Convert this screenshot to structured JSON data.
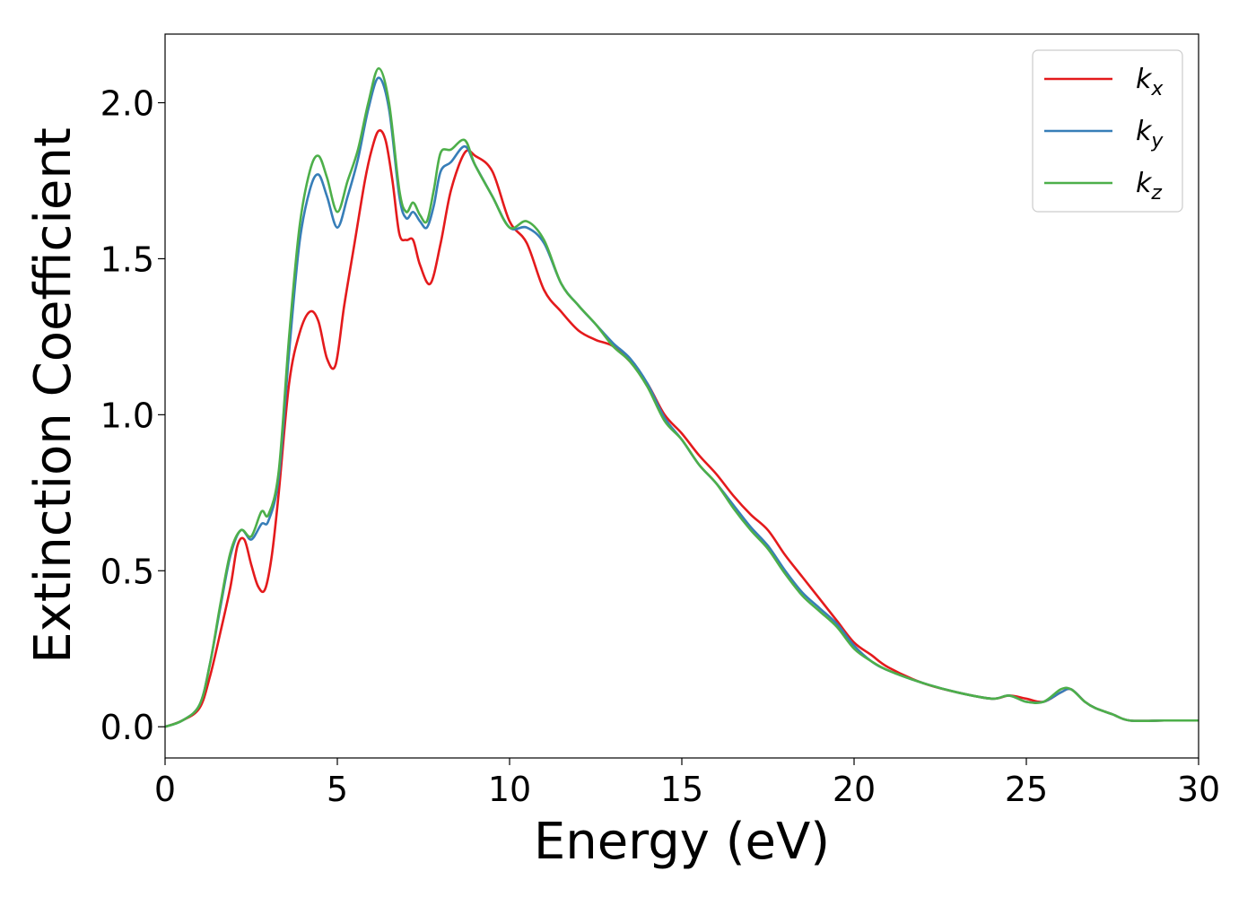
{
  "chart_data": {
    "type": "line",
    "title": "",
    "xlabel": "Energy (eV)",
    "ylabel": "Extinction Coefficient",
    "xlim": [
      0,
      30
    ],
    "ylim": [
      -0.1,
      2.22
    ],
    "xticks": [
      0,
      5,
      10,
      15,
      20,
      25,
      30
    ],
    "xtick_labels": [
      "0",
      "5",
      "10",
      "15",
      "20",
      "25",
      "30"
    ],
    "yticks": [
      0.0,
      0.5,
      1.0,
      1.5,
      2.0
    ],
    "ytick_labels": [
      "0.0",
      "0.5",
      "1.0",
      "1.5",
      "2.0"
    ],
    "grid": false,
    "legend_position": "top-right",
    "series": [
      {
        "name": "k",
        "subscript": "x",
        "color": "#e41a1c",
        "x": [
          0,
          0.5,
          1.0,
          1.3,
          1.6,
          1.9,
          2.1,
          2.3,
          2.5,
          2.7,
          2.9,
          3.1,
          3.3,
          3.6,
          3.9,
          4.2,
          4.45,
          4.7,
          4.95,
          5.2,
          5.5,
          5.8,
          6.0,
          6.2,
          6.4,
          6.6,
          6.8,
          7.0,
          7.2,
          7.4,
          7.7,
          8.0,
          8.3,
          8.7,
          9.0,
          9.5,
          10.0,
          10.5,
          11.0,
          11.5,
          12.0,
          12.5,
          13.0,
          13.5,
          14.0,
          14.5,
          15.0,
          15.5,
          16.0,
          16.5,
          17.0,
          17.5,
          18.0,
          18.5,
          19.0,
          19.5,
          20.0,
          20.5,
          21.0,
          22.0,
          23.0,
          24.0,
          24.5,
          25.0,
          25.5,
          26.0,
          26.3,
          26.7,
          27.0,
          27.5,
          28.0,
          29.0,
          30.0
        ],
        "values": [
          0.0,
          0.02,
          0.06,
          0.16,
          0.3,
          0.45,
          0.58,
          0.6,
          0.52,
          0.45,
          0.44,
          0.55,
          0.75,
          1.1,
          1.26,
          1.33,
          1.3,
          1.18,
          1.16,
          1.35,
          1.55,
          1.75,
          1.85,
          1.91,
          1.88,
          1.75,
          1.58,
          1.56,
          1.56,
          1.48,
          1.42,
          1.55,
          1.72,
          1.84,
          1.83,
          1.78,
          1.62,
          1.55,
          1.4,
          1.33,
          1.27,
          1.24,
          1.22,
          1.17,
          1.1,
          1.0,
          0.94,
          0.87,
          0.81,
          0.74,
          0.68,
          0.63,
          0.55,
          0.48,
          0.41,
          0.34,
          0.27,
          0.23,
          0.19,
          0.14,
          0.11,
          0.09,
          0.1,
          0.09,
          0.08,
          0.11,
          0.12,
          0.08,
          0.06,
          0.04,
          0.02,
          0.02,
          0.02
        ]
      },
      {
        "name": "k",
        "subscript": "y",
        "color": "#377eb8",
        "x": [
          0,
          0.5,
          1.0,
          1.3,
          1.6,
          1.9,
          2.2,
          2.5,
          2.8,
          3.0,
          3.3,
          3.6,
          3.9,
          4.2,
          4.45,
          4.7,
          5.0,
          5.3,
          5.6,
          5.9,
          6.2,
          6.5,
          6.8,
          7.0,
          7.2,
          7.4,
          7.6,
          7.8,
          8.0,
          8.3,
          8.7,
          9.0,
          9.5,
          10.0,
          10.5,
          11.0,
          11.5,
          12.0,
          12.5,
          13.0,
          13.5,
          14.0,
          14.5,
          15.0,
          15.5,
          16.0,
          16.5,
          17.0,
          17.5,
          18.0,
          18.5,
          19.0,
          19.5,
          20.0,
          20.5,
          21.0,
          22.0,
          23.0,
          24.0,
          24.5,
          25.0,
          25.5,
          26.0,
          26.3,
          26.7,
          27.0,
          27.5,
          28.0,
          29.0,
          30.0
        ],
        "values": [
          0.0,
          0.02,
          0.07,
          0.2,
          0.38,
          0.55,
          0.63,
          0.6,
          0.65,
          0.66,
          0.8,
          1.2,
          1.55,
          1.72,
          1.77,
          1.7,
          1.6,
          1.7,
          1.82,
          1.98,
          2.08,
          1.98,
          1.7,
          1.63,
          1.65,
          1.62,
          1.6,
          1.67,
          1.78,
          1.81,
          1.86,
          1.8,
          1.7,
          1.6,
          1.6,
          1.55,
          1.42,
          1.35,
          1.29,
          1.23,
          1.18,
          1.1,
          0.99,
          0.92,
          0.84,
          0.78,
          0.71,
          0.64,
          0.58,
          0.5,
          0.43,
          0.38,
          0.33,
          0.26,
          0.21,
          0.18,
          0.14,
          0.11,
          0.09,
          0.1,
          0.08,
          0.08,
          0.11,
          0.12,
          0.08,
          0.06,
          0.04,
          0.02,
          0.02,
          0.02
        ]
      },
      {
        "name": "k",
        "subscript": "z",
        "color": "#4daf4a",
        "x": [
          0,
          0.5,
          1.0,
          1.3,
          1.6,
          1.9,
          2.2,
          2.5,
          2.8,
          3.0,
          3.3,
          3.6,
          3.9,
          4.2,
          4.45,
          4.7,
          5.0,
          5.3,
          5.6,
          5.9,
          6.2,
          6.5,
          6.8,
          7.0,
          7.2,
          7.4,
          7.6,
          7.8,
          8.0,
          8.3,
          8.7,
          9.0,
          9.5,
          10.0,
          10.5,
          11.0,
          11.5,
          12.0,
          12.5,
          13.0,
          13.5,
          14.0,
          14.5,
          15.0,
          15.5,
          16.0,
          16.5,
          17.0,
          17.5,
          18.0,
          18.5,
          19.0,
          19.5,
          20.0,
          20.5,
          21.0,
          22.0,
          23.0,
          24.0,
          24.5,
          25.0,
          25.5,
          26.0,
          26.3,
          26.7,
          27.0,
          27.5,
          28.0,
          29.0,
          30.0
        ],
        "values": [
          0.0,
          0.02,
          0.07,
          0.2,
          0.39,
          0.56,
          0.63,
          0.61,
          0.69,
          0.68,
          0.82,
          1.25,
          1.6,
          1.78,
          1.83,
          1.76,
          1.65,
          1.75,
          1.85,
          2.0,
          2.11,
          2.0,
          1.72,
          1.65,
          1.68,
          1.64,
          1.62,
          1.72,
          1.84,
          1.85,
          1.88,
          1.8,
          1.7,
          1.6,
          1.62,
          1.56,
          1.42,
          1.35,
          1.29,
          1.22,
          1.17,
          1.09,
          0.98,
          0.92,
          0.84,
          0.78,
          0.7,
          0.63,
          0.57,
          0.49,
          0.42,
          0.37,
          0.32,
          0.25,
          0.21,
          0.18,
          0.14,
          0.11,
          0.09,
          0.1,
          0.08,
          0.08,
          0.12,
          0.12,
          0.08,
          0.06,
          0.04,
          0.02,
          0.02,
          0.02
        ]
      }
    ]
  }
}
